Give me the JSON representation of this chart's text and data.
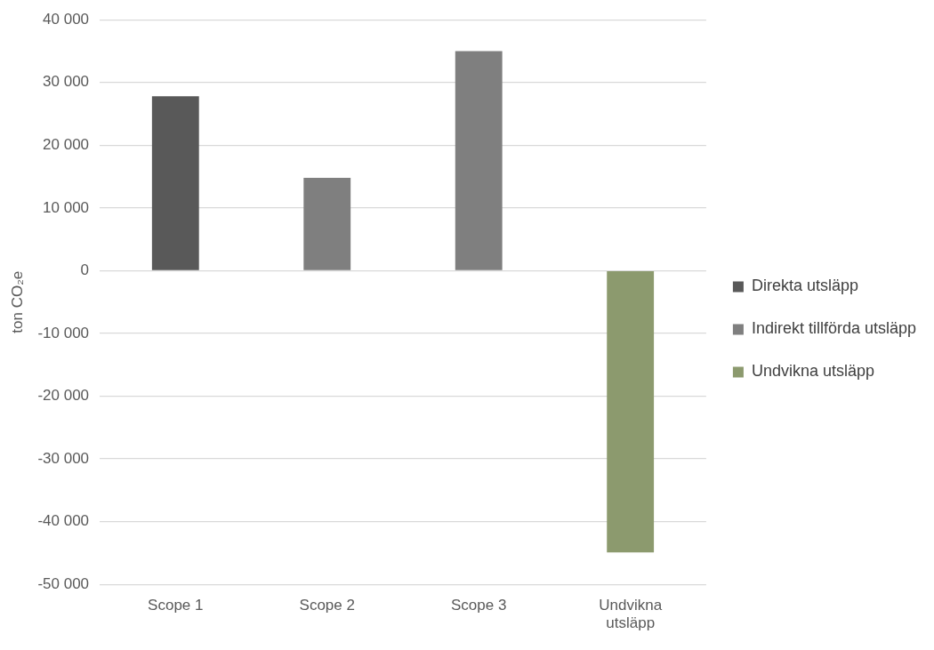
{
  "chart_data": {
    "type": "bar",
    "ylabel": "ton CO₂e",
    "categories": [
      "Scope 1",
      "Scope 2",
      "Scope 3",
      "Undvikna utsläpp"
    ],
    "series": [
      {
        "name": "Direkta utsläpp",
        "color": "#595959",
        "values": [
          27800,
          null,
          null,
          null
        ]
      },
      {
        "name": "Indirekt tillförda utsläpp",
        "color": "#7f7f7f",
        "values": [
          null,
          14800,
          35000,
          null
        ]
      },
      {
        "name": "Undvikna utsläpp",
        "color": "#8c9a6e",
        "values": [
          null,
          null,
          null,
          -44900
        ]
      }
    ],
    "ylim": [
      -50000,
      40000
    ],
    "yticks": [
      {
        "value": -50000,
        "label": "-50 000"
      },
      {
        "value": -40000,
        "label": "-40 000"
      },
      {
        "value": -30000,
        "label": "-30 000"
      },
      {
        "value": -20000,
        "label": "-20 000"
      },
      {
        "value": -10000,
        "label": "-10 000"
      },
      0,
      {
        "value": 10000,
        "label": "10 000"
      },
      {
        "value": 20000,
        "label": "20 000"
      },
      {
        "value": 30000,
        "label": "30 000"
      },
      {
        "value": 40000,
        "label": "40 000"
      }
    ],
    "grid": "y",
    "legend": "right"
  }
}
